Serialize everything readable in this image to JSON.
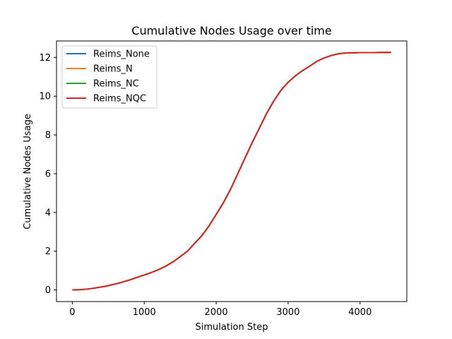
{
  "chart_data": {
    "type": "line",
    "title": "Cumulative Nodes Usage over time",
    "xlabel": "Simulation Step",
    "ylabel": "Cumulative Nodes Usage",
    "xlim": [
      -220,
      4650
    ],
    "ylim": [
      -0.6,
      12.85
    ],
    "xticks": [
      0,
      1000,
      2000,
      3000,
      4000
    ],
    "yticks": [
      0,
      2,
      4,
      6,
      8,
      10,
      12
    ],
    "grid": false,
    "legend_position": "upper-left",
    "x": [
      0,
      100,
      200,
      300,
      400,
      500,
      600,
      700,
      800,
      900,
      1000,
      1100,
      1200,
      1300,
      1400,
      1500,
      1600,
      1700,
      1800,
      1900,
      2000,
      2100,
      2200,
      2300,
      2400,
      2500,
      2600,
      2700,
      2800,
      2900,
      3000,
      3100,
      3200,
      3300,
      3400,
      3500,
      3600,
      3700,
      3800,
      3900,
      4000,
      4100,
      4200,
      4300,
      4430
    ],
    "series": [
      {
        "name": "Reims_None",
        "color": "#1f77b4",
        "values": [
          0,
          0.01,
          0.04,
          0.09,
          0.15,
          0.22,
          0.31,
          0.41,
          0.52,
          0.65,
          0.77,
          0.9,
          1.05,
          1.23,
          1.45,
          1.72,
          2.0,
          2.4,
          2.8,
          3.3,
          3.9,
          4.5,
          5.2,
          6.0,
          6.8,
          7.6,
          8.35,
          9.1,
          9.75,
          10.3,
          10.72,
          11.05,
          11.32,
          11.55,
          11.8,
          11.97,
          12.1,
          12.19,
          12.23,
          12.24,
          12.25,
          12.25,
          12.25,
          12.26,
          12.26
        ]
      },
      {
        "name": "Reims_N",
        "color": "#ff7f0e",
        "values": [
          0,
          0.01,
          0.04,
          0.09,
          0.15,
          0.22,
          0.31,
          0.41,
          0.52,
          0.65,
          0.77,
          0.9,
          1.05,
          1.23,
          1.45,
          1.72,
          2.0,
          2.4,
          2.8,
          3.3,
          3.9,
          4.5,
          5.2,
          6.0,
          6.8,
          7.6,
          8.35,
          9.1,
          9.75,
          10.3,
          10.72,
          11.05,
          11.32,
          11.55,
          11.8,
          11.97,
          12.1,
          12.19,
          12.23,
          12.24,
          12.25,
          12.25,
          12.25,
          12.26,
          12.26
        ]
      },
      {
        "name": "Reims_NC",
        "color": "#2ca02c",
        "values": [
          0,
          0.01,
          0.04,
          0.09,
          0.15,
          0.22,
          0.31,
          0.41,
          0.52,
          0.65,
          0.77,
          0.9,
          1.05,
          1.23,
          1.45,
          1.72,
          2.0,
          2.4,
          2.8,
          3.3,
          3.9,
          4.5,
          5.2,
          6.0,
          6.8,
          7.6,
          8.35,
          9.1,
          9.75,
          10.3,
          10.72,
          11.05,
          11.32,
          11.55,
          11.8,
          11.97,
          12.1,
          12.19,
          12.23,
          12.24,
          12.25,
          12.25,
          12.25,
          12.26,
          12.26
        ]
      },
      {
        "name": "Reims_NQC",
        "color": "#d62728",
        "values": [
          0,
          0.01,
          0.04,
          0.09,
          0.15,
          0.22,
          0.31,
          0.41,
          0.52,
          0.65,
          0.77,
          0.9,
          1.05,
          1.23,
          1.45,
          1.72,
          2.0,
          2.4,
          2.8,
          3.3,
          3.9,
          4.5,
          5.2,
          6.0,
          6.8,
          7.6,
          8.35,
          9.1,
          9.75,
          10.3,
          10.72,
          11.05,
          11.32,
          11.55,
          11.8,
          11.97,
          12.1,
          12.19,
          12.23,
          12.24,
          12.25,
          12.25,
          12.25,
          12.26,
          12.26
        ]
      }
    ]
  }
}
